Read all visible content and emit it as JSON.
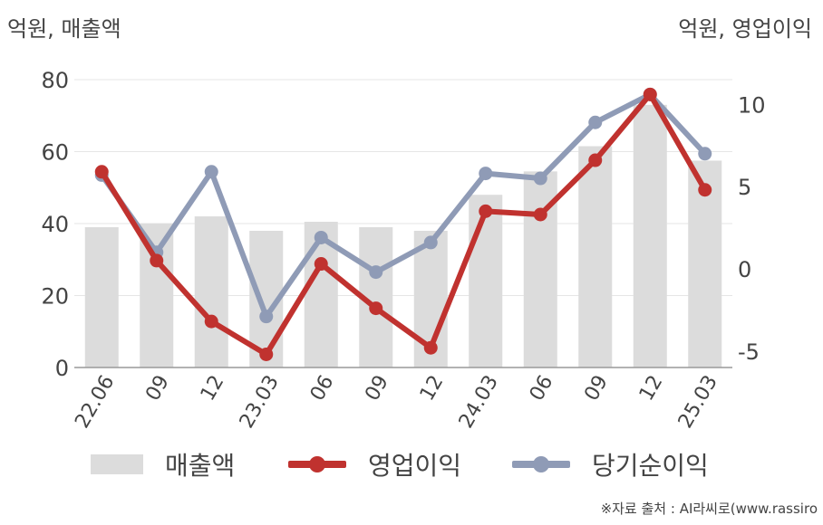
{
  "unit_left": "억원, 매출액",
  "unit_right": "억원, 영업이익",
  "source": "※자료 출처 : AI라씨로(www.rassiro",
  "colors": {
    "bar": "#dcdcdc",
    "operating": "#c0322f",
    "net": "#8f9bb6",
    "axis": "#999999",
    "grid": "#e6e6e6"
  },
  "legend": {
    "bar": "매출액",
    "operating": "영업이익",
    "net": "당기순이익"
  },
  "chart_data": {
    "type": "bar",
    "categories": [
      "22.06",
      "09",
      "12",
      "23.03",
      "06",
      "09",
      "12",
      "24.03",
      "06",
      "09",
      "12",
      "25.03"
    ],
    "left_axis": {
      "ylim": [
        0,
        80
      ],
      "ticks": [
        "0",
        "20",
        "40",
        "60",
        "80"
      ]
    },
    "right_axis": {
      "ylim": [
        -6,
        11.5
      ],
      "ticks": [
        "-5",
        "0",
        "5",
        "10"
      ]
    },
    "series": [
      {
        "name": "매출액",
        "type": "bar",
        "axis": "left",
        "values": [
          39,
          40,
          42,
          38,
          40.5,
          39,
          38,
          48,
          54.5,
          61.5,
          73,
          57.5
        ]
      },
      {
        "name": "영업이익",
        "type": "line",
        "axis": "right",
        "values": [
          5.9,
          0.5,
          -3.2,
          -5.2,
          0.3,
          -2.4,
          -4.8,
          3.5,
          3.3,
          6.6,
          10.6,
          4.8
        ]
      },
      {
        "name": "당기순이익",
        "type": "line",
        "axis": "right",
        "values": [
          5.7,
          1.0,
          5.9,
          -2.9,
          1.9,
          -0.2,
          1.6,
          5.8,
          5.5,
          8.9,
          10.6,
          7.0
        ]
      }
    ]
  }
}
